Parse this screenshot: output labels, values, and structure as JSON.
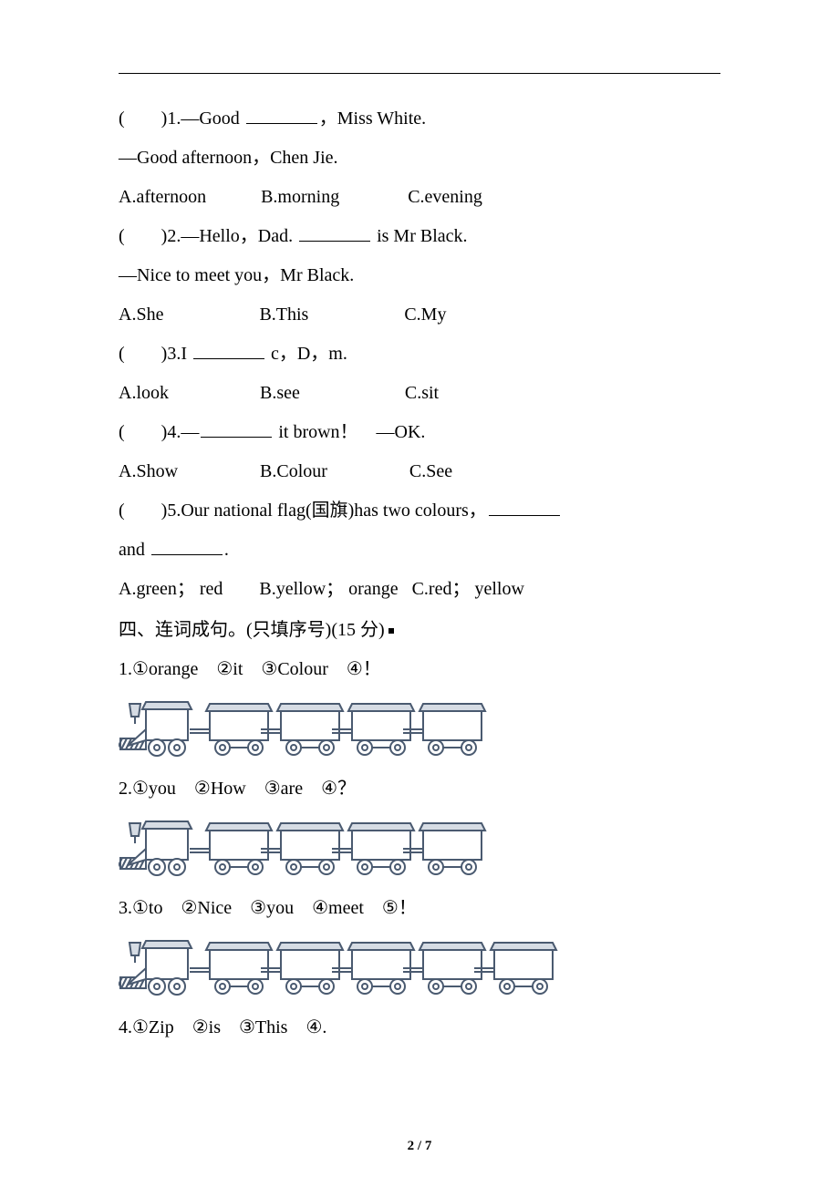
{
  "colors": {
    "text": "#000000",
    "background": "#ffffff",
    "train_fill": "#d6dce4",
    "train_stroke": "#4a5a70"
  },
  "q1": {
    "line1_pre": "(　　)1.—Good ",
    "line1_post": "，Miss White.",
    "line2": "—Good afternoon，Chen Jie.",
    "opts": "A.afternoon            B.morning               C.evening"
  },
  "q2": {
    "line1_pre": "(　　)2.—Hello，Dad. ",
    "line1_post": " is Mr Black.",
    "line2": "—Nice to meet you，Mr Black.",
    "opts": "A.She                     B.This                     C.My"
  },
  "q3": {
    "line1_pre": "(　　)3.I ",
    "line1_post": " c，D，m.",
    "opts": "A.look                    B.see                       C.sit"
  },
  "q4": {
    "line1_pre": "(　　)4.—",
    "line1_mid": " it brown！　—OK.",
    "opts": "A.Show                  B.Colour                  C.See"
  },
  "q5": {
    "line1_pre": "(　　)5.Our national flag(国旗)has two colours，",
    "line2_pre": "and ",
    "line2_post": ".",
    "opts": "A.green； red        B.yellow； orange   C.red； yellow"
  },
  "section4": {
    "title": "四、连词成句。(只填序号)(15 分)"
  },
  "s4q1": {
    "text": "1.①orange　②it　③Colour　④！",
    "cars": 4
  },
  "s4q2": {
    "text": "2.①you　②How　③are　④？",
    "cars": 4
  },
  "s4q3": {
    "text": "3.①to　②Nice　③you　④meet　⑤！",
    "cars": 5
  },
  "s4q4": {
    "text": "4.①Zip　②is　③This　④."
  },
  "pagenum": "2 / 7"
}
